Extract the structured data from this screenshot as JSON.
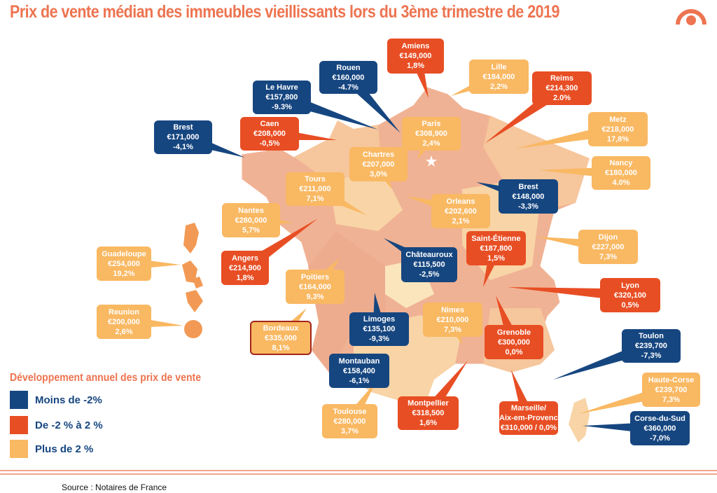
{
  "title": "Prix de vente médian des immeubles vieillissants lors du 3ème trimestre de 2019",
  "logo_icon": "notaires-logo-icon",
  "colors": {
    "blue": "#164680",
    "red": "#e84e24",
    "light": "#f9b862",
    "title": "#ed7450"
  },
  "callouts": [
    {
      "city": "Amiens",
      "price": "€149,000",
      "change": "1,8%",
      "category": "red"
    },
    {
      "city": "Rouen",
      "price": "€160,000",
      "change": "-4.7%",
      "category": "blue"
    },
    {
      "city": "Le Havre",
      "price": "€157,800",
      "change": "-9.3%",
      "category": "blue"
    },
    {
      "city": "Lille",
      "price": "€184,000",
      "change": "2,2%",
      "category": "light"
    },
    {
      "city": "Reims",
      "price": "€214,300",
      "change": "2.0%",
      "category": "red"
    },
    {
      "city": "Brest",
      "price": "€171,000",
      "change": "-4,1%",
      "category": "blue"
    },
    {
      "city": "Caen",
      "price": "€208,000",
      "change": "-0,5%",
      "category": "red"
    },
    {
      "city": "Paris",
      "price": "€308,900",
      "change": "2,4%",
      "category": "light"
    },
    {
      "city": "Chartres",
      "price": "€207,000",
      "change": "3,0%",
      "category": "light"
    },
    {
      "city": "Metz",
      "price": "€218,000",
      "change": "17,8%",
      "category": "light"
    },
    {
      "city": "Nancy",
      "price": "€180,000",
      "change": "4.0%",
      "category": "light"
    },
    {
      "city": "Brest",
      "price": "€148,000",
      "change": "-3,3%",
      "category": "blue"
    },
    {
      "city": "Tours",
      "price": "€211,000",
      "change": "7,1%",
      "category": "light"
    },
    {
      "city": "Orleans",
      "price": "€202,600",
      "change": "2,1%",
      "category": "light"
    },
    {
      "city": "Nantes",
      "price": "€280,000",
      "change": "5,7%",
      "category": "light"
    },
    {
      "city": "Saint-Étienne",
      "price": "€187,800",
      "change": "1,5%",
      "category": "red"
    },
    {
      "city": "Dijon",
      "price": "€227,000",
      "change": "7,3%",
      "category": "light"
    },
    {
      "city": "Guadeloupe",
      "price": "€254,000",
      "change": "19,2%",
      "category": "light"
    },
    {
      "city": "Angers",
      "price": "€214,900",
      "change": "1,8%",
      "category": "red"
    },
    {
      "city": "Châteauroux",
      "price": "€115,500",
      "change": "-2,5%",
      "category": "blue"
    },
    {
      "city": "Poitiers",
      "price": "€164,000",
      "change": "9,3%",
      "category": "light"
    },
    {
      "city": "Lyon",
      "price": "€320,100",
      "change": "0,5%",
      "category": "red"
    },
    {
      "city": "Reunion",
      "price": "€200,000",
      "change": "2,6%",
      "category": "light"
    },
    {
      "city": "Limoges",
      "price": "€135,100",
      "change": "-9,3%",
      "category": "blue"
    },
    {
      "city": "Nimes",
      "price": "€210,000",
      "change": "7,3%",
      "category": "light"
    },
    {
      "city": "Bordeaux",
      "price": "€335,000",
      "change": "8,1%",
      "category": "light"
    },
    {
      "city": "Grenoble",
      "price": "€300,000",
      "change": "0,0%",
      "category": "red"
    },
    {
      "city": "Toulon",
      "price": "€239,700",
      "change": "-7,3%",
      "category": "blue"
    },
    {
      "city": "Montauban",
      "price": "€158,400",
      "change": "-6,1%",
      "category": "blue"
    },
    {
      "city": "Montpellier",
      "price": "€318,500",
      "change": "1,6%",
      "category": "red"
    },
    {
      "city": "Marseille/\nAix-em-Provence",
      "price": "€310,000 / 0,0%",
      "change": "",
      "category": "red"
    },
    {
      "city": "Haute-Corse",
      "price": "€239,700",
      "change": "7,3%",
      "category": "light"
    },
    {
      "city": "Toulouse",
      "price": "€280,000",
      "change": "3,7%",
      "category": "light"
    },
    {
      "city": "Corse-du-Sud",
      "price": "€360,000",
      "change": "-7,0%",
      "category": "blue"
    }
  ],
  "legend": {
    "title": "Développement annuel des prix de vente",
    "items": [
      {
        "label": "Moins de -2%",
        "category": "blue"
      },
      {
        "label": "De -2 % à 2 %",
        "category": "red"
      },
      {
        "label": "Plus de 2 %",
        "category": "light"
      }
    ]
  },
  "source": "Source : Notaires de France"
}
